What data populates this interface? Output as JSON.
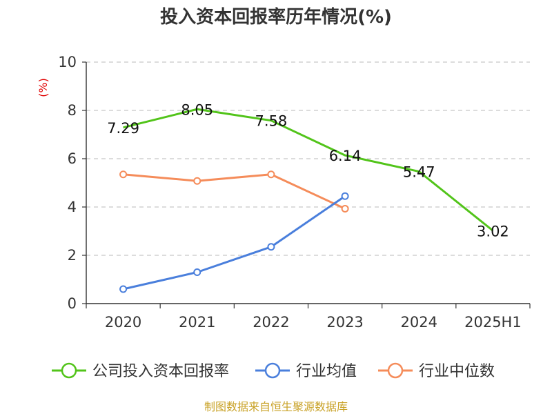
{
  "title": "投入资本回报率历年情况(%)",
  "unit_label": "(%)",
  "source": "制图数据来自恒生聚源数据库",
  "chart_data": {
    "type": "line",
    "title": "投入资本回报率历年情况(%)",
    "ylabel": "(%)",
    "xlabel": "",
    "categories": [
      "2020",
      "2021",
      "2022",
      "2023",
      "2024",
      "2025H1"
    ],
    "ylim": [
      0,
      10
    ],
    "yticks": [
      0,
      2,
      4,
      6,
      8,
      10
    ],
    "grid": true,
    "legend_position": "bottom",
    "series": [
      {
        "name": "公司投入资本回报率",
        "color": "#52c41a",
        "values": [
          7.29,
          8.05,
          7.58,
          6.14,
          5.47,
          3.02
        ],
        "labels": [
          "7.29",
          "8.05",
          "7.58",
          "6.14",
          "5.47",
          "3.02"
        ]
      },
      {
        "name": "行业均值",
        "color": "#4a7fdc",
        "values": [
          0.6,
          1.3,
          2.35,
          4.45,
          null,
          null
        ]
      },
      {
        "name": "行业中位数",
        "color": "#f58c5a",
        "values": [
          5.35,
          5.08,
          5.35,
          3.93,
          null,
          null
        ]
      }
    ]
  }
}
